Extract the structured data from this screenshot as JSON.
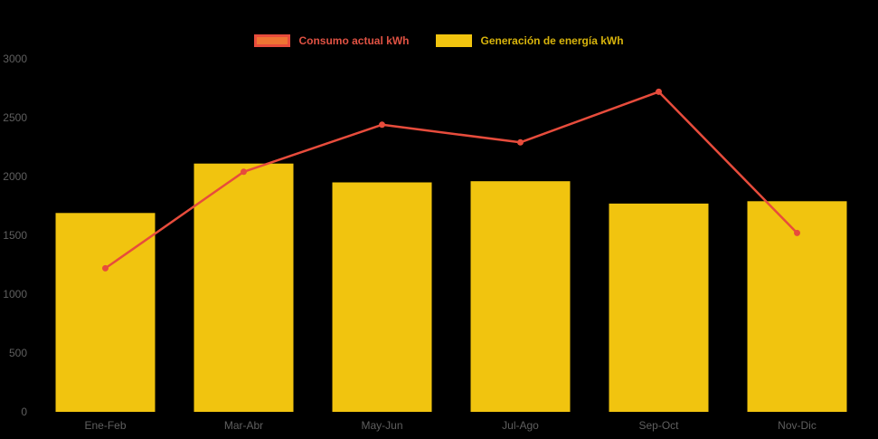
{
  "chart_data": {
    "type": "combo",
    "categories": [
      "Ene-Feb",
      "Mar-Abr",
      "May-Jun",
      "Jul-Ago",
      "Sep-Oct",
      "Nov-Dic"
    ],
    "series": [
      {
        "name": "Consumo actual kWh",
        "kind": "line",
        "color": "#e74c3c",
        "values": [
          1220,
          2040,
          2440,
          2290,
          2720,
          1520
        ]
      },
      {
        "name": "Generación de energía kWh",
        "kind": "bar",
        "color": "#f1c40f",
        "values": [
          1690,
          2110,
          1950,
          1960,
          1770,
          1790
        ]
      }
    ],
    "title": "",
    "xlabel": "",
    "ylabel": "",
    "ylim": [
      0,
      3000
    ],
    "yticks": [
      0,
      500,
      1000,
      1500,
      2000,
      2500,
      3000
    ],
    "grid": false,
    "legend_position": "top"
  },
  "colors": {
    "background": "#000000",
    "axis_text": "#5f5f5f",
    "consumo_line": "#e74c3c",
    "consumo_swatch_fill": "#ee7433",
    "consumo_swatch_border": "#e74c3c",
    "generacion_bar": "#f1c40f",
    "consumo_label_text": "#e05243",
    "generacion_label_text": "#d8b40c"
  }
}
